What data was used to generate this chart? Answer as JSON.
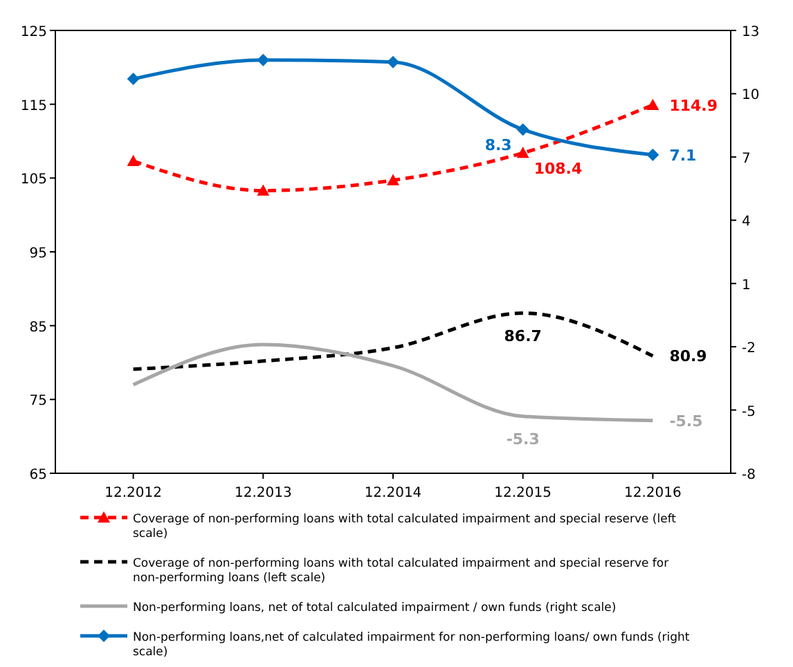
{
  "chart_data": {
    "type": "line",
    "categories": [
      "12.2012",
      "12.2013",
      "12.2014",
      "12.2015",
      "12.2016"
    ],
    "series": [
      {
        "name": "Coverage of non-performing loans with total calculated impairment and special reserve (left scale)",
        "color": "#ff0000",
        "values": [
          107.3,
          103.3,
          104.7,
          108.4,
          114.9
        ],
        "marker": "triangle",
        "line_style": "dashed",
        "value_labels": [
          null,
          null,
          null,
          "108.4",
          "114.9"
        ]
      },
      {
        "name": "Coverage of non-performing loans with total calculated impairment and special reserve for non-performing loans (left scale)",
        "color": "#000000",
        "values": [
          79.1,
          80.2,
          82.0,
          86.7,
          80.9
        ],
        "marker": "none",
        "line_style": "dashed",
        "value_labels": [
          null,
          null,
          null,
          "86.7",
          "80.9"
        ]
      },
      {
        "name": "Non-performing loans, net of total calculated impairment / own funds (right scale)",
        "color": "#a6a6a6",
        "values": [
          -3.8,
          -1.9,
          -2.9,
          -5.3,
          -5.5
        ],
        "axis": "y2",
        "marker": "none",
        "line_style": "solid",
        "value_labels": [
          null,
          null,
          null,
          "-5.3",
          "-5.5"
        ]
      },
      {
        "name": "Non-performing loans,net of calculated impairment for non-performing loans/ own funds (right scale)",
        "color": "#0070c0",
        "values": [
          10.7,
          11.6,
          11.5,
          8.3,
          7.1
        ],
        "axis": "y2",
        "marker": "diamond",
        "line_style": "solid",
        "value_labels": [
          null,
          null,
          null,
          "8.3",
          "7.1"
        ]
      }
    ],
    "ylim": [
      65,
      125
    ],
    "yticks": [
      65,
      75,
      85,
      95,
      105,
      115,
      125
    ],
    "y2lim": [
      -8,
      13
    ],
    "y2ticks": [
      -8,
      -5,
      -2,
      1,
      4,
      7,
      10,
      13
    ],
    "grid": false,
    "legend": "bottom"
  }
}
